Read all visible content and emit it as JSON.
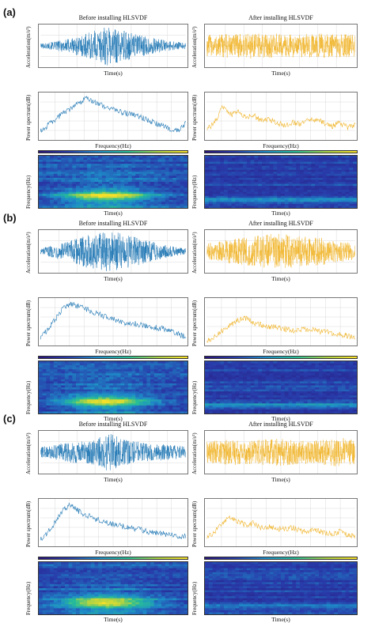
{
  "panels": [
    {
      "letter": "(a)"
    },
    {
      "letter": "(b)"
    },
    {
      "letter": "(c)"
    }
  ],
  "labels": {
    "before": "Before installing HLSVDF",
    "after": "After installing HLSVDF",
    "accel_y": "Acceleration(m/s²)",
    "time_x": "Time(s)",
    "power_y": "Power spectrum(dB)",
    "freq_x": "Frequency(Hz)",
    "freqhz_y": "Frequency(Hz)"
  },
  "colors": {
    "before": "#1f77b4",
    "after": "#f0b429",
    "grid": "#d8d8d8"
  },
  "chart_data": [
    {
      "type": "line",
      "panel": "(a)",
      "subplot": "acceleration",
      "title": "Before installing HLSVDF",
      "xlabel": "Time(s)",
      "ylabel": "Acceleration(m/s²)",
      "series": [
        {
          "color": "#1f77b4"
        }
      ],
      "envelope": [
        0.12,
        0.2,
        0.3,
        0.45,
        0.6,
        0.8,
        1.0,
        0.85,
        0.7,
        0.55,
        0.4,
        0.3,
        0.22,
        0.15
      ]
    },
    {
      "type": "line",
      "panel": "(a)",
      "subplot": "acceleration",
      "title": "After installing HLSVDF",
      "xlabel": "Time(s)",
      "ylabel": "Acceleration(m/s²)",
      "series": [
        {
          "color": "#f0b429"
        }
      ],
      "envelope": [
        0.55,
        0.6,
        0.62,
        0.6,
        0.65,
        0.6,
        0.62,
        0.6,
        0.58,
        0.6,
        0.62,
        0.58,
        0.6,
        0.55
      ]
    },
    {
      "type": "line",
      "panel": "(a)",
      "subplot": "power",
      "title": "",
      "xlabel": "Frequency(Hz)",
      "ylabel": "Power spectrum(dB)",
      "series": [
        {
          "color": "#1f77b4"
        }
      ],
      "values": [
        0.15,
        0.3,
        0.45,
        0.6,
        0.7,
        0.82,
        0.95,
        0.88,
        0.78,
        0.72,
        0.65,
        0.6,
        0.55,
        0.5,
        0.42,
        0.35,
        0.28,
        0.2,
        0.15,
        0.35
      ]
    },
    {
      "type": "line",
      "panel": "(a)",
      "subplot": "power",
      "title": "",
      "xlabel": "Frequency(Hz)",
      "ylabel": "Power spectrum(dB)",
      "series": [
        {
          "color": "#f0b429"
        }
      ],
      "values": [
        0.2,
        0.35,
        0.75,
        0.55,
        0.62,
        0.48,
        0.55,
        0.4,
        0.45,
        0.35,
        0.3,
        0.38,
        0.32,
        0.45,
        0.42,
        0.36,
        0.28,
        0.35,
        0.25,
        0.3
      ]
    },
    {
      "type": "heatmap",
      "panel": "(a)",
      "subplot": "spectrogram",
      "title": "",
      "xlabel": "Time(s)",
      "ylabel": "Frequency(Hz)",
      "intensity": "high"
    },
    {
      "type": "heatmap",
      "panel": "(a)",
      "subplot": "spectrogram",
      "title": "",
      "xlabel": "Time(s)",
      "ylabel": "Frequency(Hz)",
      "intensity": "low"
    },
    {
      "type": "line",
      "panel": "(b)",
      "subplot": "acceleration",
      "title": "Before installing HLSVDF",
      "xlabel": "Time(s)",
      "ylabel": "Acceleration(m/s²)",
      "series": [
        {
          "color": "#1f77b4"
        }
      ],
      "envelope": [
        0.15,
        0.3,
        0.45,
        0.6,
        0.8,
        0.9,
        1.0,
        0.95,
        0.8,
        0.65,
        0.5,
        0.35,
        0.25,
        0.15
      ]
    },
    {
      "type": "line",
      "panel": "(b)",
      "subplot": "acceleration",
      "title": "After installing HLSVDF",
      "xlabel": "Time(s)",
      "ylabel": "Acceleration(m/s²)",
      "series": [
        {
          "color": "#f0b429"
        }
      ],
      "envelope": [
        0.4,
        0.5,
        0.6,
        0.7,
        0.75,
        0.85,
        0.9,
        0.85,
        0.8,
        0.75,
        0.7,
        0.6,
        0.5,
        0.4
      ]
    },
    {
      "type": "line",
      "panel": "(b)",
      "subplot": "power",
      "title": "",
      "xlabel": "Frequency(Hz)",
      "ylabel": "Power spectrum(dB)",
      "series": [
        {
          "color": "#1f77b4"
        }
      ],
      "values": [
        0.1,
        0.35,
        0.6,
        0.85,
        0.95,
        0.9,
        0.82,
        0.75,
        0.68,
        0.6,
        0.55,
        0.5,
        0.48,
        0.45,
        0.4,
        0.38,
        0.35,
        0.3,
        0.22,
        0.15
      ]
    },
    {
      "type": "line",
      "panel": "(b)",
      "subplot": "power",
      "title": "",
      "xlabel": "Frequency(Hz)",
      "ylabel": "Power spectrum(dB)",
      "series": [
        {
          "color": "#f0b429"
        }
      ],
      "values": [
        0.05,
        0.15,
        0.3,
        0.45,
        0.55,
        0.6,
        0.5,
        0.45,
        0.38,
        0.4,
        0.35,
        0.3,
        0.32,
        0.35,
        0.3,
        0.28,
        0.25,
        0.22,
        0.18,
        0.12
      ]
    },
    {
      "type": "heatmap",
      "panel": "(b)",
      "subplot": "spectrogram",
      "title": "",
      "xlabel": "Time(s)",
      "ylabel": "Frequency(Hz)",
      "intensity": "high"
    },
    {
      "type": "heatmap",
      "panel": "(b)",
      "subplot": "spectrogram",
      "title": "",
      "xlabel": "Time(s)",
      "ylabel": "Frequency(Hz)",
      "intensity": "low"
    },
    {
      "type": "line",
      "panel": "(c)",
      "subplot": "acceleration",
      "title": "Before installing HLSVDF",
      "xlabel": "Time(s)",
      "ylabel": "Acceleration(m/s²)",
      "series": [
        {
          "color": "#1f77b4"
        }
      ],
      "envelope": [
        0.25,
        0.35,
        0.45,
        0.55,
        0.6,
        0.65,
        1.0,
        0.75,
        0.6,
        0.5,
        0.45,
        0.4,
        0.35,
        0.3
      ]
    },
    {
      "type": "line",
      "panel": "(c)",
      "subplot": "acceleration",
      "title": "After installing HLSVDF",
      "xlabel": "Time(s)",
      "ylabel": "Acceleration(m/s²)",
      "series": [
        {
          "color": "#f0b429"
        }
      ],
      "envelope": [
        0.55,
        0.6,
        0.65,
        0.62,
        0.6,
        0.65,
        0.7,
        0.65,
        0.6,
        0.62,
        0.65,
        0.7,
        0.75,
        0.6
      ]
    },
    {
      "type": "line",
      "panel": "(c)",
      "subplot": "power",
      "title": "",
      "xlabel": "Frequency(Hz)",
      "ylabel": "Power spectrum(dB)",
      "series": [
        {
          "color": "#1f77b4"
        }
      ],
      "values": [
        0.1,
        0.3,
        0.55,
        0.85,
        0.95,
        0.8,
        0.7,
        0.62,
        0.55,
        0.5,
        0.45,
        0.42,
        0.38,
        0.35,
        0.3,
        0.28,
        0.25,
        0.22,
        0.2,
        0.18
      ]
    },
    {
      "type": "line",
      "panel": "(c)",
      "subplot": "power",
      "title": "",
      "xlabel": "Frequency(Hz)",
      "ylabel": "Power spectrum(dB)",
      "series": [
        {
          "color": "#f0b429"
        }
      ],
      "values": [
        0.15,
        0.3,
        0.5,
        0.65,
        0.55,
        0.45,
        0.5,
        0.4,
        0.42,
        0.38,
        0.35,
        0.4,
        0.32,
        0.3,
        0.35,
        0.28,
        0.25,
        0.3,
        0.22,
        0.18
      ]
    },
    {
      "type": "heatmap",
      "panel": "(c)",
      "subplot": "spectrogram",
      "title": "",
      "xlabel": "Time(s)",
      "ylabel": "Frequency(Hz)",
      "intensity": "high"
    },
    {
      "type": "heatmap",
      "panel": "(c)",
      "subplot": "spectrogram",
      "title": "",
      "xlabel": "Time(s)",
      "ylabel": "Frequency(Hz)",
      "intensity": "low"
    }
  ]
}
